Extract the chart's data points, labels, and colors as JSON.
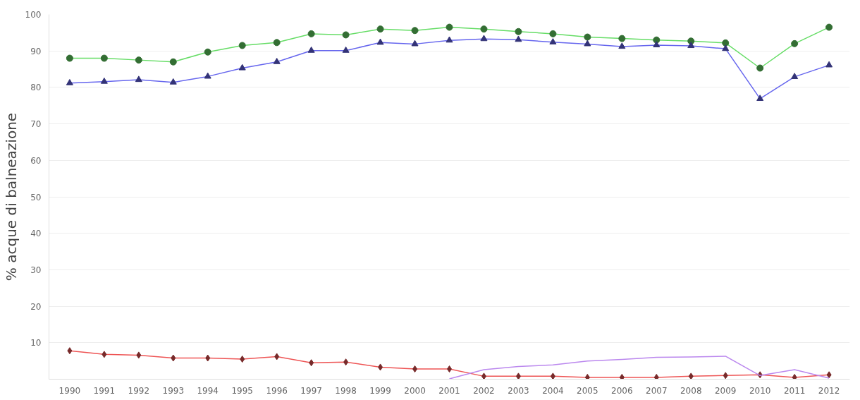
{
  "chart_data": {
    "type": "line",
    "ylabel": "% acque di balneazione",
    "categories": [
      "1990",
      "1991",
      "1992",
      "1993",
      "1994",
      "1995",
      "1996",
      "1997",
      "1998",
      "1999",
      "2000",
      "2001",
      "2002",
      "2003",
      "2004",
      "2005",
      "2006",
      "2007",
      "2008",
      "2009",
      "2010",
      "2011",
      "2012"
    ],
    "series": [
      {
        "color": "#66dd66",
        "marker": "circle",
        "values": [
          88,
          88,
          87.5,
          87,
          89.7,
          91.5,
          92.3,
          94.7,
          94.4,
          96,
          95.6,
          96.5,
          96,
          95.3,
          94.7,
          93.8,
          93.4,
          93,
          92.7,
          92.2,
          85.3,
          92,
          96.5
        ]
      },
      {
        "color": "#6666ee",
        "marker": "triangle",
        "values": [
          81.2,
          81.6,
          82.1,
          81.4,
          83,
          85.3,
          87,
          90.1,
          90.1,
          92.3,
          91.9,
          92.9,
          93.3,
          93.1,
          92.4,
          91.9,
          91.2,
          91.6,
          91.4,
          90.6,
          76.9,
          82.9,
          86.1
        ]
      },
      {
        "color": "#ee5555",
        "marker": "diamond",
        "values": [
          7.8,
          6.8,
          6.6,
          5.8,
          5.8,
          5.5,
          6.2,
          4.5,
          4.7,
          3.3,
          2.8,
          2.8,
          0.8,
          0.8,
          0.8,
          0.5,
          0.5,
          0.5,
          0.8,
          1.0,
          1.2,
          0.5,
          1.2
        ]
      },
      {
        "color": "#bb88ee",
        "marker": "none",
        "values": [
          null,
          null,
          null,
          null,
          null,
          null,
          null,
          null,
          null,
          null,
          null,
          0.1,
          2.6,
          3.5,
          3.9,
          5.0,
          5.4,
          6.0,
          6.1,
          6.3,
          1.0,
          2.6,
          0.3
        ]
      }
    ],
    "ylim": [
      0,
      100
    ],
    "yticks": [
      10,
      20,
      30,
      40,
      50,
      60,
      70,
      80,
      90,
      100
    ],
    "grid": "y"
  }
}
